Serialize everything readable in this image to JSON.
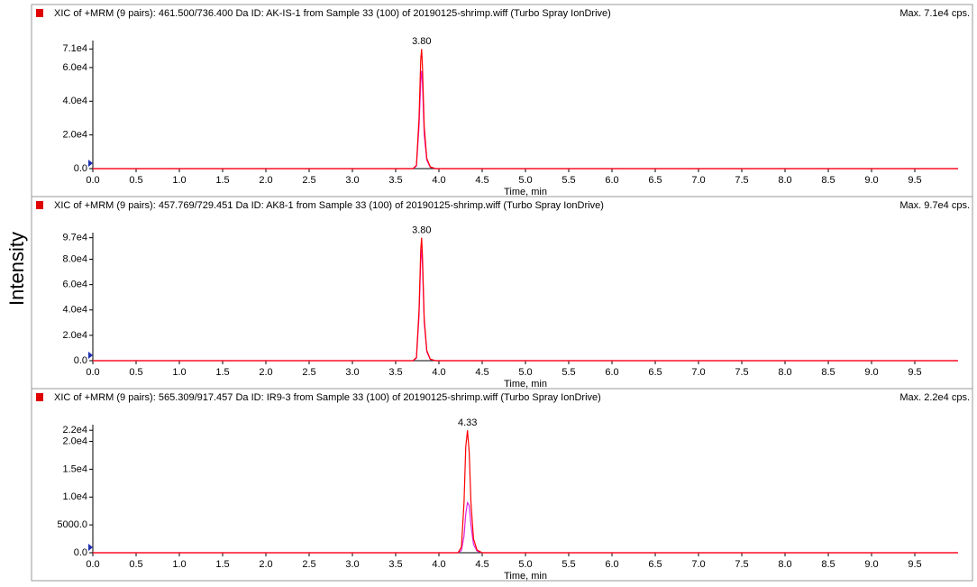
{
  "y_label": "Intensity",
  "chart_data": [
    {
      "type": "line",
      "title": "XIC of +MRM (9 pairs): 461.500/736.400 Da ID: AK-IS-1 from Sample 33 (100) of 20190125-shrimp.wiff (Turbo Spray IonDrive)",
      "max_label": "Max. 7.1e4 cps.",
      "x_label": "Time, min",
      "xlim": [
        0,
        10
      ],
      "ylim": [
        0,
        76000
      ],
      "xticks": [
        {
          "value": 0,
          "label": "0.0"
        },
        0.5,
        {
          "value": 1,
          "label": "1.0"
        },
        1.5,
        {
          "value": 2,
          "label": "2.0"
        },
        2.5,
        {
          "value": 3,
          "label": "3.0"
        },
        3.5,
        {
          "value": 4,
          "label": "4.0"
        },
        4.5,
        {
          "value": 5,
          "label": "5.0"
        },
        5.5,
        {
          "value": 6,
          "label": "6.0"
        },
        6.5,
        {
          "value": 7,
          "label": "7.0"
        },
        7.5,
        {
          "value": 8,
          "label": "8.0"
        },
        8.5,
        {
          "value": 9,
          "label": "9.0"
        },
        9.5
      ],
      "yticks": [
        {
          "value": 0,
          "label": "0.0"
        },
        {
          "value": 20000,
          "label": "2.0e4"
        },
        {
          "value": 40000,
          "label": "4.0e4"
        },
        {
          "value": 60000,
          "label": "6.0e4"
        },
        {
          "value": 71000,
          "label": "7.1e4"
        }
      ],
      "x": [
        0,
        3.7,
        3.74,
        3.77,
        3.79,
        3.8,
        3.81,
        3.83,
        3.86,
        3.9,
        3.96,
        10
      ],
      "series": [
        {
          "name": "magenta",
          "color": "#e020e0",
          "values": [
            0,
            0,
            1500,
            25000,
            52000,
            58000,
            50000,
            20000,
            5000,
            800,
            0,
            0
          ]
        },
        {
          "name": "red",
          "color": "#ff0000",
          "values": [
            0,
            0,
            2000,
            30000,
            65000,
            71000,
            60000,
            25000,
            6000,
            1000,
            0,
            0
          ]
        }
      ],
      "annotations": [
        {
          "text": "3.80",
          "x": 3.8,
          "y": 71000
        }
      ]
    },
    {
      "type": "line",
      "title": "XIC of +MRM (9 pairs): 457.769/729.451 Da ID: AK8-1 from Sample 33 (100) of 20190125-shrimp.wiff (Turbo Spray IonDrive)",
      "max_label": "Max. 9.7e4 cps.",
      "x_label": "Time, min",
      "xlim": [
        0,
        10
      ],
      "ylim": [
        0,
        101000
      ],
      "xticks": [
        {
          "value": 0,
          "label": "0.0"
        },
        0.5,
        {
          "value": 1,
          "label": "1.0"
        },
        1.5,
        {
          "value": 2,
          "label": "2.0"
        },
        2.5,
        {
          "value": 3,
          "label": "3.0"
        },
        3.5,
        {
          "value": 4,
          "label": "4.0"
        },
        4.5,
        {
          "value": 5,
          "label": "5.0"
        },
        5.5,
        {
          "value": 6,
          "label": "6.0"
        },
        6.5,
        {
          "value": 7,
          "label": "7.0"
        },
        7.5,
        {
          "value": 8,
          "label": "8.0"
        },
        8.5,
        {
          "value": 9,
          "label": "9.0"
        },
        9.5
      ],
      "yticks": [
        {
          "value": 0,
          "label": "0.0"
        },
        {
          "value": 20000,
          "label": "2.0e4"
        },
        {
          "value": 40000,
          "label": "4.0e4"
        },
        {
          "value": 60000,
          "label": "6.0e4"
        },
        {
          "value": 80000,
          "label": "8.0e4"
        },
        {
          "value": 97000,
          "label": "9.7e4"
        }
      ],
      "x": [
        0,
        3.7,
        3.74,
        3.77,
        3.79,
        3.8,
        3.81,
        3.83,
        3.86,
        3.9,
        3.96,
        10
      ],
      "series": [
        {
          "name": "magenta",
          "color": "#e020e0",
          "values": [
            0,
            0,
            2000,
            35000,
            80000,
            88000,
            75000,
            30000,
            7000,
            1000,
            0,
            0
          ]
        },
        {
          "name": "red",
          "color": "#ff0000",
          "values": [
            0,
            0,
            2500,
            40000,
            88000,
            97000,
            82000,
            33000,
            8000,
            1200,
            0,
            0
          ]
        }
      ],
      "annotations": [
        {
          "text": "3.80",
          "x": 3.8,
          "y": 97000
        }
      ]
    },
    {
      "type": "line",
      "title": "XIC of +MRM (9 pairs): 565.309/917.457 Da ID: IR9-3 from Sample 33 (100) of 20190125-shrimp.wiff (Turbo Spray IonDrive)",
      "max_label": "Max. 2.2e4 cps.",
      "x_label": "Time, min",
      "xlim": [
        0,
        10
      ],
      "ylim": [
        0,
        23000
      ],
      "xticks": [
        {
          "value": 0,
          "label": "0.0"
        },
        0.5,
        {
          "value": 1,
          "label": "1.0"
        },
        1.5,
        {
          "value": 2,
          "label": "2.0"
        },
        2.5,
        {
          "value": 3,
          "label": "3.0"
        },
        3.5,
        {
          "value": 4,
          "label": "4.0"
        },
        4.5,
        {
          "value": 5,
          "label": "5.0"
        },
        5.5,
        {
          "value": 6,
          "label": "6.0"
        },
        6.5,
        {
          "value": 7,
          "label": "7.0"
        },
        7.5,
        {
          "value": 8,
          "label": "8.0"
        },
        8.5,
        {
          "value": 9,
          "label": "9.0"
        },
        9.5
      ],
      "yticks": [
        {
          "value": 0,
          "label": "0.0"
        },
        {
          "value": 5000,
          "label": "5000.0"
        },
        {
          "value": 10000,
          "label": "1.0e4"
        },
        {
          "value": 15000,
          "label": "1.5e4"
        },
        {
          "value": 20000,
          "label": "2.0e4"
        },
        {
          "value": 22000,
          "label": "2.2e4"
        }
      ],
      "x": [
        0,
        4.22,
        4.26,
        4.29,
        4.31,
        4.33,
        4.35,
        4.37,
        4.4,
        4.44,
        4.5,
        10
      ],
      "series": [
        {
          "name": "magenta",
          "color": "#e020e0",
          "values": [
            0,
            0,
            400,
            3000,
            7000,
            9000,
            8500,
            5000,
            1500,
            300,
            0,
            0
          ]
        },
        {
          "name": "red",
          "color": "#ff0000",
          "values": [
            0,
            0,
            1000,
            9000,
            19000,
            22000,
            18000,
            9000,
            2500,
            500,
            0,
            0
          ]
        }
      ],
      "annotations": [
        {
          "text": "4.33",
          "x": 4.33,
          "y": 22000
        }
      ]
    }
  ]
}
